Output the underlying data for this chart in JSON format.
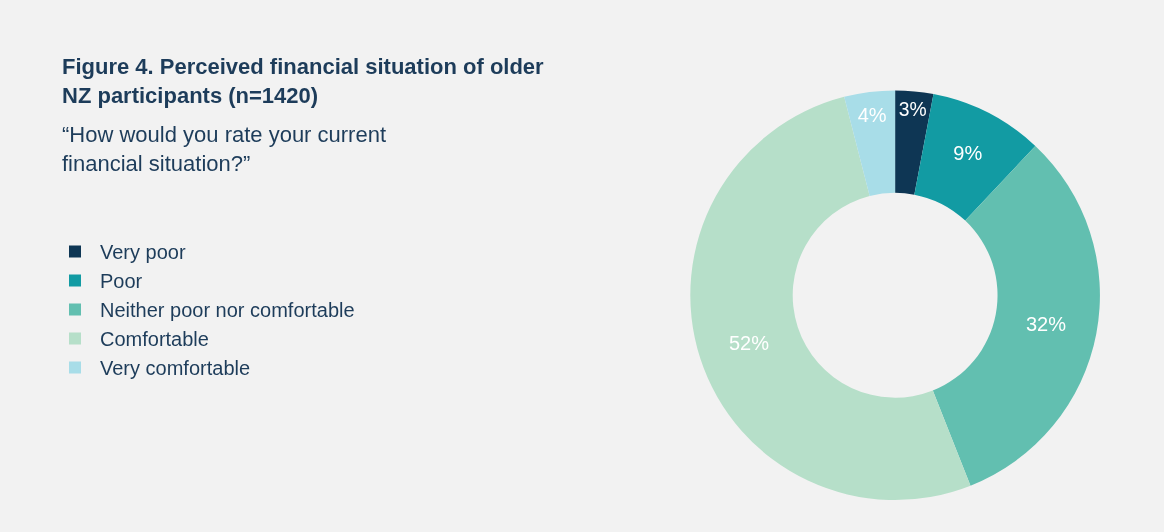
{
  "chart_data": {
    "type": "donut",
    "title": "Figure 4. Perceived financial situation of older NZ participants (n=1420)",
    "subtitle": "“How would you rate your current financial situation?”",
    "categories": [
      "Very poor",
      "Poor",
      "Neither poor nor comfortable",
      "Comfortable",
      "Very comfortable"
    ],
    "values": [
      3,
      9,
      32,
      52,
      4
    ],
    "value_labels": [
      "3%",
      "9%",
      "32%",
      "52%",
      "4%"
    ],
    "colors": [
      "#0e3654",
      "#129ba3",
      "#62bfb0",
      "#b6dfc9",
      "#a8dde8"
    ],
    "legend": "left"
  }
}
